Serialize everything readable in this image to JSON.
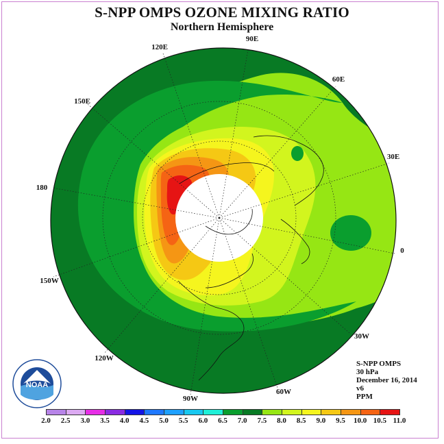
{
  "title": "S-NPP OMPS OZONE MIXING RATIO",
  "subtitle": "Northern Hemisphere",
  "longitude_labels": [
    {
      "text": "90E",
      "name": "lon-label-90e"
    },
    {
      "text": "60E",
      "name": "lon-label-60e"
    },
    {
      "text": "30E",
      "name": "lon-label-30e"
    },
    {
      "text": "0",
      "name": "lon-label-0"
    },
    {
      "text": "30W",
      "name": "lon-label-30w"
    },
    {
      "text": "60W",
      "name": "lon-label-60w"
    },
    {
      "text": "90W",
      "name": "lon-label-90w"
    },
    {
      "text": "120W",
      "name": "lon-label-120w"
    },
    {
      "text": "150W",
      "name": "lon-label-150w"
    },
    {
      "text": "180",
      "name": "lon-label-180"
    },
    {
      "text": "150E",
      "name": "lon-label-150e"
    },
    {
      "text": "120E",
      "name": "lon-label-120e"
    }
  ],
  "info": {
    "instrument": "S-NPP OMPS",
    "level": "30 hPa",
    "date": "December 16, 2014",
    "version": "v6",
    "units": "PPM"
  },
  "logo_text": "NOAA",
  "colorbar": {
    "labels": [
      "2.0",
      "2.5",
      "3.0",
      "3.5",
      "4.0",
      "4.5",
      "5.0",
      "5.5",
      "6.0",
      "6.5",
      "7.0",
      "7.5",
      "8.0",
      "8.5",
      "9.0",
      "9.5",
      "10.0",
      "10.5",
      "11.0"
    ],
    "colors": [
      "#b784e8",
      "#dcaaf2",
      "#e62ee6",
      "#8a2be2",
      "#1414e6",
      "#1e78ff",
      "#1ea0ff",
      "#18c8f0",
      "#20f0d8",
      "#0a9e2e",
      "#087a24",
      "#96e614",
      "#d2f51e",
      "#f5f51e",
      "#f5c814",
      "#f59614",
      "#f56414",
      "#e61414",
      "#8b5a32"
    ]
  },
  "colors": {
    "dark_green": "#087a24",
    "medium_green": "#0a9e2e",
    "light_green": "#96e614",
    "yellow_green": "#d2f51e",
    "yellow": "#f5f51e",
    "orange": "#f59614",
    "red": "#e61414"
  }
}
